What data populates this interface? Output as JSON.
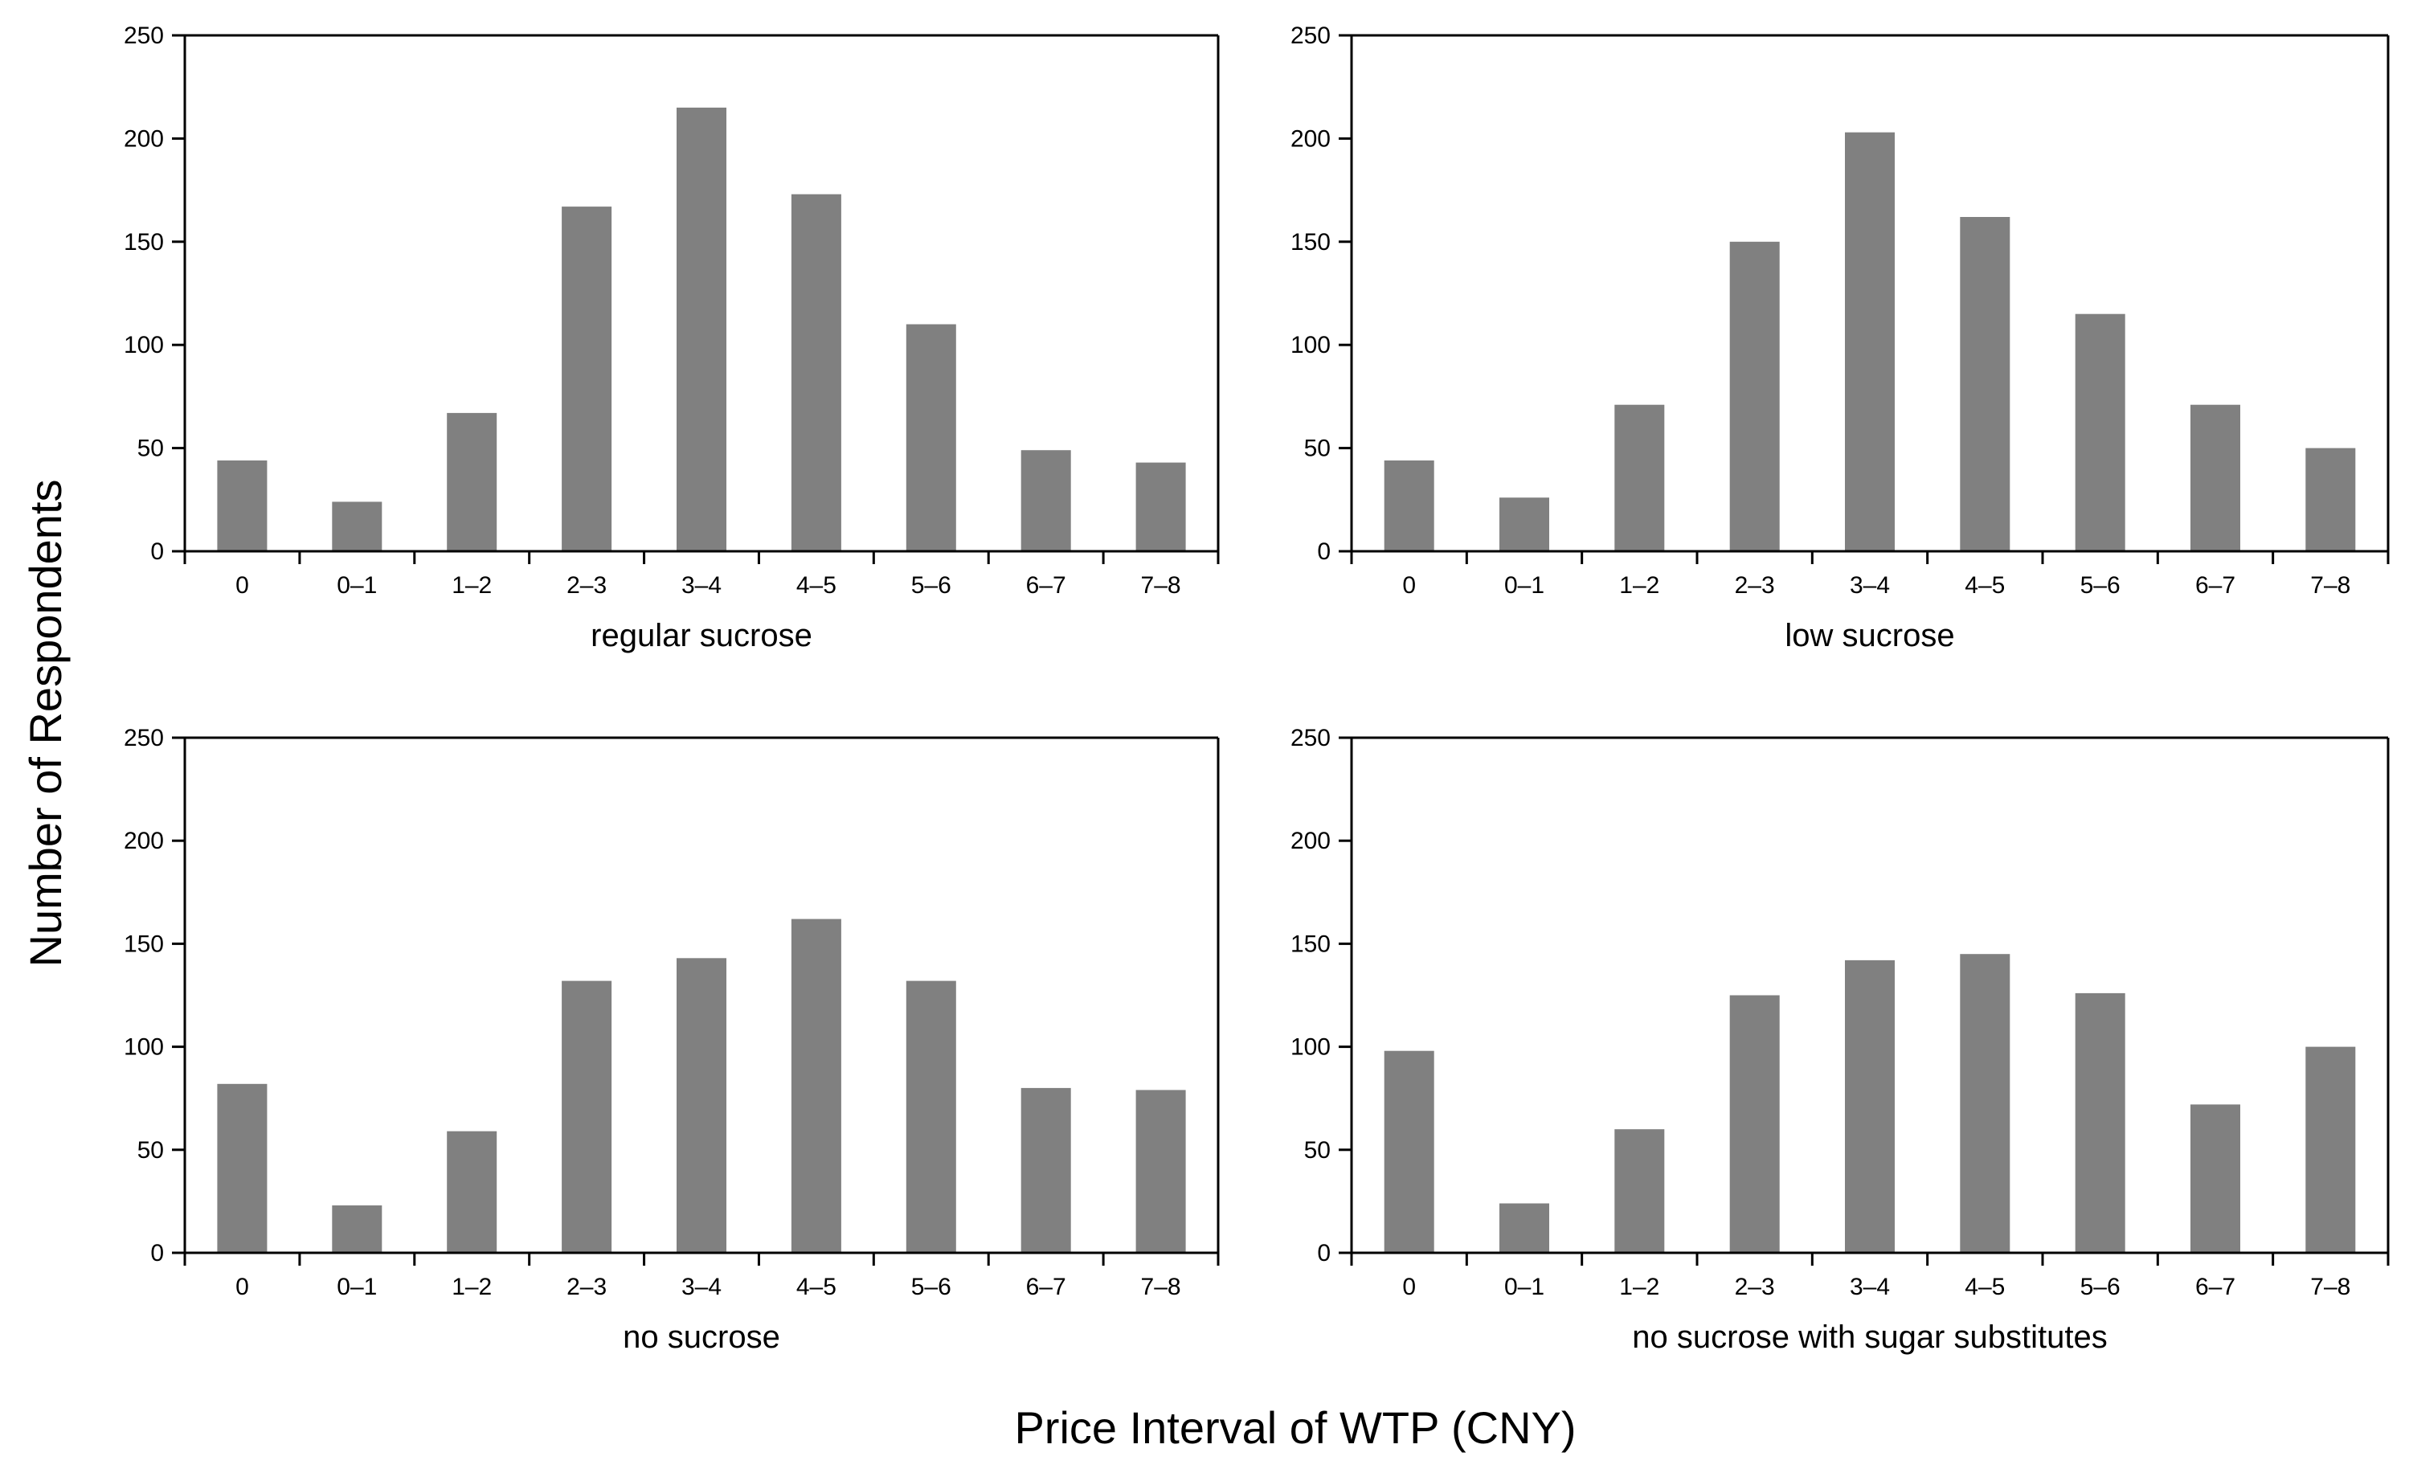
{
  "figure": {
    "ylabel": "Number of  Respondents",
    "xlabel": "Price Interval of WTP (CNY)"
  },
  "chart_data": [
    {
      "type": "bar",
      "title": "regular sucrose",
      "categories": [
        "0",
        "0–1",
        "1–2",
        "2–3",
        "3–4",
        "4–5",
        "5–6",
        "6–7",
        "7–8"
      ],
      "values": [
        44,
        24,
        67,
        167,
        215,
        173,
        110,
        49,
        43
      ],
      "ylim": [
        0,
        250
      ],
      "yticks": [
        "0",
        "50",
        "100",
        "150",
        "200",
        "250"
      ],
      "color": "#808080"
    },
    {
      "type": "bar",
      "title": "low sucrose",
      "categories": [
        "0",
        "0–1",
        "1–2",
        "2–3",
        "3–4",
        "4–5",
        "5–6",
        "6–7",
        "7–8"
      ],
      "values": [
        44,
        26,
        71,
        150,
        203,
        162,
        115,
        71,
        50
      ],
      "ylim": [
        0,
        250
      ],
      "yticks": [
        "0",
        "50",
        "100",
        "150",
        "200",
        "250"
      ],
      "color": "#808080"
    },
    {
      "type": "bar",
      "title": "no sucrose",
      "categories": [
        "0",
        "0–1",
        "1–2",
        "2–3",
        "3–4",
        "4–5",
        "5–6",
        "6–7",
        "7–8"
      ],
      "values": [
        82,
        23,
        59,
        132,
        143,
        162,
        132,
        80,
        79
      ],
      "ylim": [
        0,
        250
      ],
      "yticks": [
        "0",
        "50",
        "100",
        "150",
        "200",
        "250"
      ],
      "color": "#808080"
    },
    {
      "type": "bar",
      "title": "no sucrose with sugar substitutes",
      "categories": [
        "0",
        "0–1",
        "1–2",
        "2–3",
        "3–4",
        "4–5",
        "5–6",
        "6–7",
        "7–8"
      ],
      "values": [
        98,
        24,
        60,
        125,
        142,
        145,
        126,
        72,
        100
      ],
      "ylim": [
        0,
        250
      ],
      "yticks": [
        "0",
        "50",
        "100",
        "150",
        "200",
        "250"
      ],
      "color": "#808080"
    }
  ]
}
